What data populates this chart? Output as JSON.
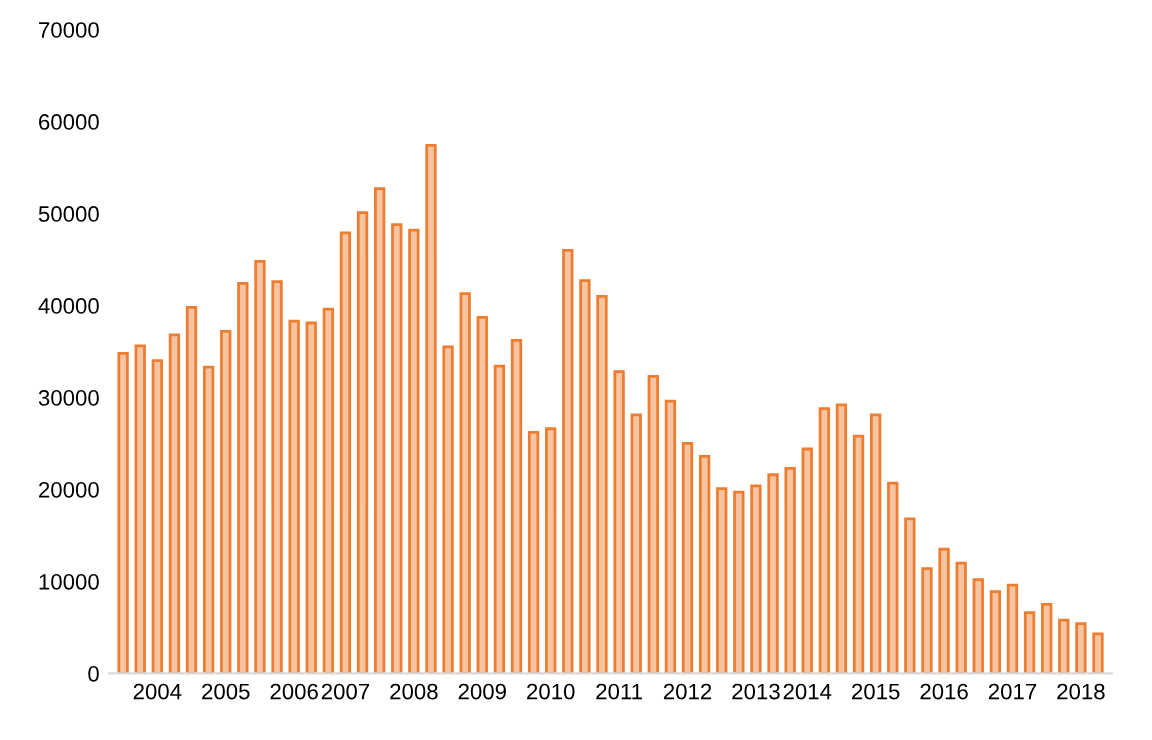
{
  "chart_data": {
    "type": "bar",
    "categories": [
      null,
      null,
      "2004",
      null,
      null,
      null,
      "2005",
      null,
      null,
      null,
      "2006",
      null,
      null,
      "2007",
      null,
      null,
      null,
      "2008",
      null,
      null,
      null,
      "2009",
      null,
      null,
      null,
      "2010",
      null,
      null,
      null,
      "2011",
      null,
      null,
      null,
      "2012",
      null,
      null,
      null,
      "2013",
      null,
      null,
      "2014",
      null,
      null,
      null,
      "2015",
      null,
      null,
      null,
      "2016",
      null,
      null,
      null,
      "2017",
      null,
      null,
      null,
      "2018",
      null
    ],
    "values": [
      34800,
      35600,
      34000,
      36800,
      39800,
      33300,
      37200,
      42400,
      44800,
      42600,
      38300,
      38100,
      39600,
      47900,
      50100,
      52700,
      48800,
      48200,
      57400,
      35500,
      41300,
      38700,
      33400,
      36200,
      26200,
      26600,
      46000,
      42700,
      41000,
      32800,
      28100,
      32300,
      29600,
      25000,
      23600,
      20100,
      19700,
      20400,
      21600,
      22300,
      24400,
      28800,
      29200,
      25800,
      28100,
      20700,
      16800,
      11400,
      13500,
      12000,
      10200,
      8900,
      9600,
      6600,
      7500,
      5800,
      5400,
      4300
    ],
    "color": "#ed7d31",
    "ylim": [
      0,
      70000
    ],
    "yticks": [
      0,
      10000,
      20000,
      30000,
      40000,
      50000,
      60000,
      70000
    ],
    "grid": false
  }
}
